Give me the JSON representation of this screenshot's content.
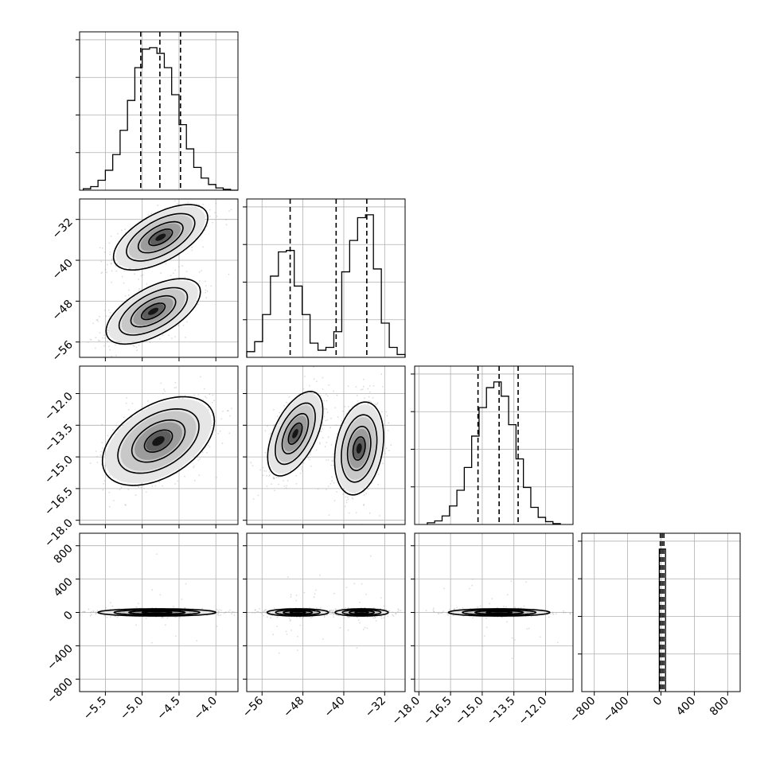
{
  "chart_data": {
    "type": "corner",
    "grid": true,
    "parameters": [
      {
        "range": [
          -5.85,
          -3.7
        ],
        "ticks": [
          -5.5,
          -5.0,
          -4.5,
          -4.0
        ],
        "tick_labels": [
          "−5.5",
          "−5.0",
          "−4.5",
          "−4.0"
        ],
        "quantiles": [
          -5.02,
          -4.76,
          -4.48
        ],
        "hist": {
          "bin_start": -5.8,
          "bin_width": 0.1,
          "counts": [
            0.01,
            0.025,
            0.07,
            0.14,
            0.25,
            0.42,
            0.63,
            0.86,
            0.99,
            1.0,
            0.96,
            0.86,
            0.67,
            0.46,
            0.29,
            0.16,
            0.085,
            0.04,
            0.016,
            0.006,
            0.0
          ]
        }
      },
      {
        "range": [
          -59.0,
          -28.0
        ],
        "ticks": [
          -56,
          -48,
          -40,
          -32
        ],
        "tick_labels": [
          "−56",
          "−48",
          "−40",
          "−32"
        ],
        "quantiles": [
          -50.5,
          -41.5,
          -35.5
        ],
        "hist": {
          "bin_start": -59.0,
          "bin_width": 1.55,
          "counts": [
            0.04,
            0.11,
            0.3,
            0.57,
            0.74,
            0.75,
            0.5,
            0.3,
            0.1,
            0.05,
            0.07,
            0.18,
            0.6,
            0.82,
            0.98,
            1.0,
            0.62,
            0.24,
            0.07,
            0.02
          ]
        }
      },
      {
        "range": [
          -18.2,
          -10.7
        ],
        "ticks": [
          -18.0,
          -16.5,
          -15.0,
          -13.5,
          -12.0
        ],
        "tick_labels": [
          "−18.0",
          "−16.5",
          "−15.0",
          "−13.5",
          "−12.0"
        ],
        "quantiles": [
          -15.2,
          -14.2,
          -13.3
        ],
        "hist": {
          "bin_start": -17.6,
          "bin_width": 0.35,
          "counts": [
            0.012,
            0.025,
            0.06,
            0.13,
            0.24,
            0.4,
            0.62,
            0.82,
            0.96,
            1.0,
            0.9,
            0.7,
            0.46,
            0.26,
            0.12,
            0.05,
            0.02,
            0.006
          ]
        }
      },
      {
        "range": [
          -950,
          950
        ],
        "ticks": [
          -800,
          -400,
          0,
          400,
          800
        ],
        "tick_labels": [
          "−800",
          "−400",
          "0",
          "400",
          "800"
        ],
        "quantiles": [
          -8,
          14,
          35
        ],
        "hist": {
          "bin_start": -20,
          "bin_width": 75,
          "counts": [
            1.0
          ]
        }
      }
    ],
    "pairs": [
      {
        "row": 1,
        "col": 0,
        "clusters": [
          {
            "cx": -4.75,
            "cy": -35.5,
            "sx": 0.32,
            "sy": 3.2,
            "rho": 0.6,
            "weight": 1.0
          },
          {
            "cx": -4.85,
            "cy": -50.0,
            "sx": 0.32,
            "sy": 3.2,
            "rho": 0.6,
            "weight": 1.0
          }
        ]
      },
      {
        "row": 2,
        "col": 0,
        "clusters": [
          {
            "cx": -4.78,
            "cy": -14.25,
            "sx": 0.38,
            "sy": 1.05,
            "rho": 0.45,
            "weight": 1.0
          }
        ]
      },
      {
        "row": 2,
        "col": 1,
        "clusters": [
          {
            "cx": -49.5,
            "cy": -13.9,
            "sx": 2.7,
            "sy": 1.0,
            "rho": 0.55,
            "weight": 1.0
          },
          {
            "cx": -37.0,
            "cy": -14.6,
            "sx": 2.4,
            "sy": 1.1,
            "rho": 0.25,
            "weight": 1.0
          }
        ]
      },
      {
        "row": 3,
        "col": 0,
        "clusters": [
          {
            "cx": -4.8,
            "cy": 0,
            "sx": 0.4,
            "sy": 22,
            "rho": 0.0,
            "weight": 1.0
          }
        ]
      },
      {
        "row": 3,
        "col": 1,
        "clusters": [
          {
            "cx": -49.0,
            "cy": 0,
            "sx": 3.0,
            "sy": 22,
            "rho": 0.0,
            "weight": 1.0
          },
          {
            "cx": -36.5,
            "cy": 0,
            "sx": 2.6,
            "sy": 22,
            "rho": 0.0,
            "weight": 1.0
          }
        ]
      },
      {
        "row": 3,
        "col": 2,
        "clusters": [
          {
            "cx": -14.2,
            "cy": 0,
            "sx": 1.2,
            "sy": 22,
            "rho": 0.0,
            "weight": 1.0
          }
        ]
      }
    ]
  }
}
